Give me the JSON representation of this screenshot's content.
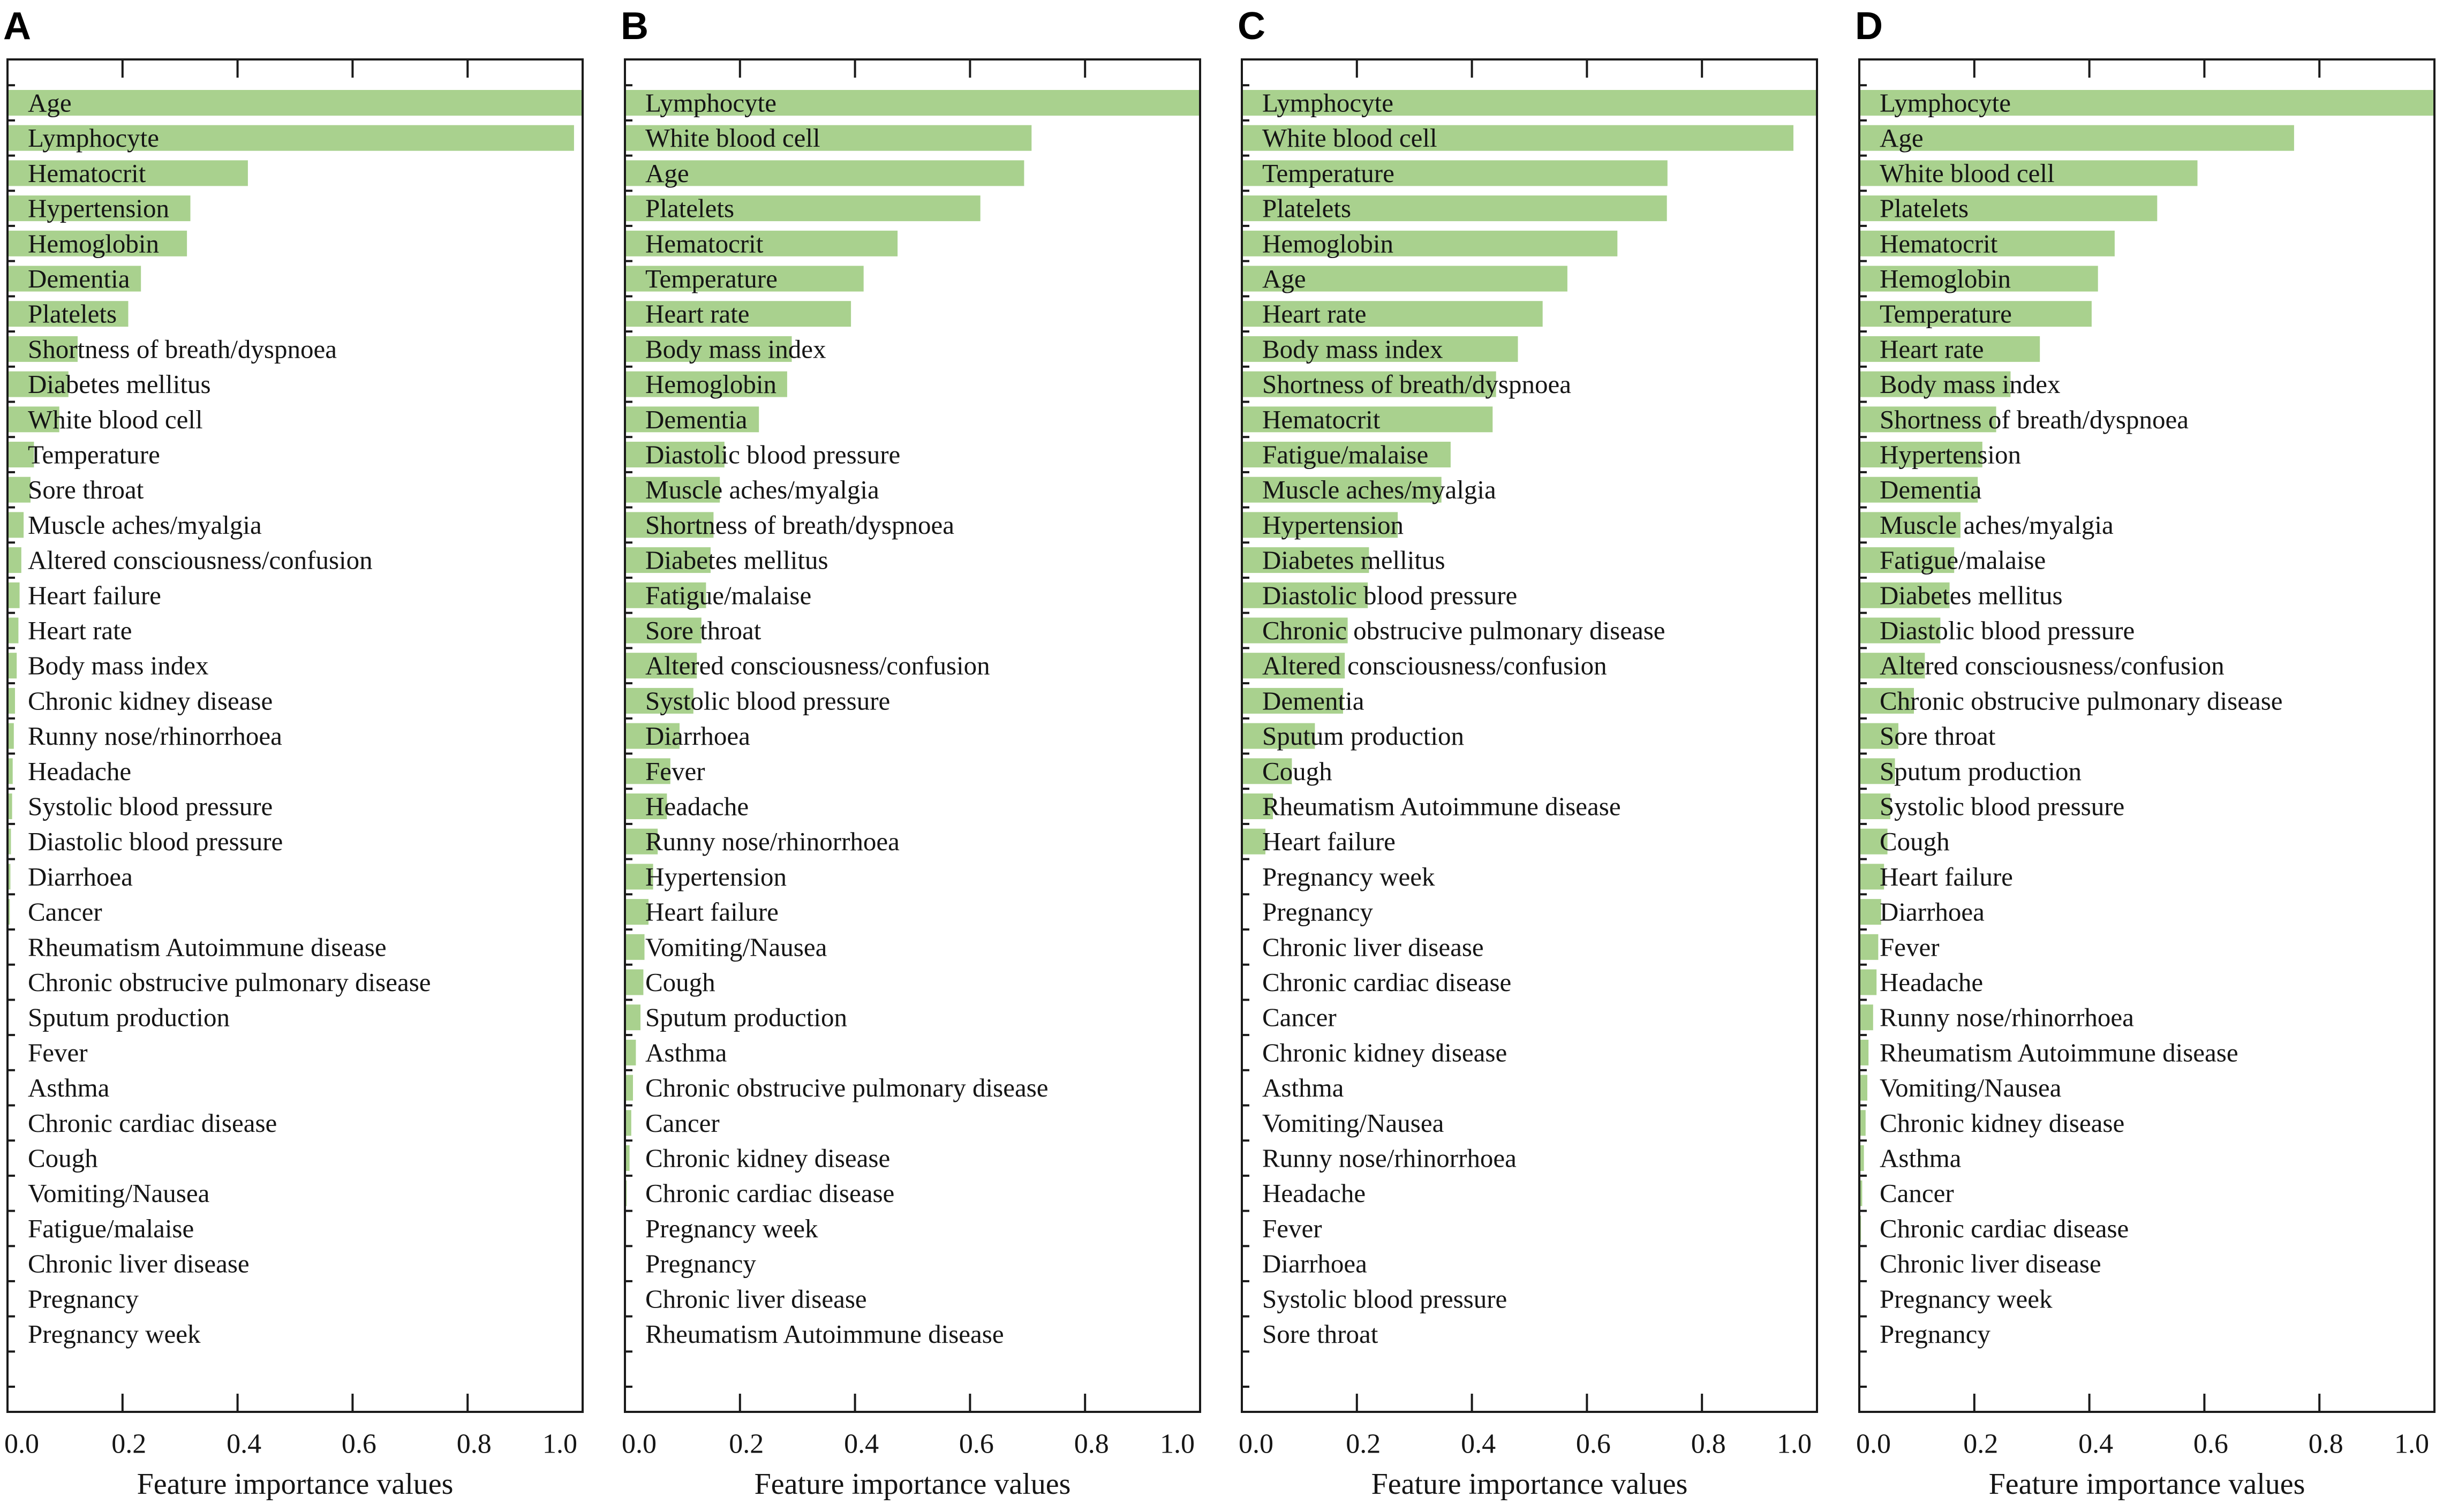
{
  "chart_data": [
    {
      "panel": "A",
      "type": "bar",
      "bar_color": "#a9d18e",
      "xlabel": "Feature importance values",
      "xlim": [
        0,
        1.0
      ],
      "xticks": [
        "0.0",
        "0.2",
        "0.4",
        "0.6",
        "0.8",
        "1.0"
      ],
      "categories": [
        "Age",
        "Lymphocyte",
        "Hematocrit",
        "Hypertension",
        "Hemoglobin",
        "Dementia",
        "Platelets",
        "Shortness of breath/dyspnoea",
        "Diabetes mellitus",
        "White blood cell",
        "Temperature",
        "Sore throat",
        "Muscle aches/myalgia",
        "Altered consciousness/confusion",
        "Heart failure",
        "Heart rate",
        "Body mass index",
        "Chronic kidney disease",
        "Runny nose/rhinorrhoea",
        "Headache",
        "Systolic blood pressure",
        "Diastolic blood pressure",
        "Diarrhoea",
        "Cancer",
        "Rheumatism Autoimmune disease",
        "Chronic obstrucive pulmonary disease",
        "Sputum production",
        "Fever",
        "Asthma",
        "Chronic cardiac disease",
        "Cough",
        "Vomiting/Nausea",
        "Fatigue/malaise",
        "Chronic liver disease",
        "Pregnancy",
        "Pregnancy week"
      ],
      "values": [
        1.0,
        0.985,
        0.418,
        0.318,
        0.312,
        0.232,
        0.21,
        0.122,
        0.106,
        0.09,
        0.046,
        0.04,
        0.028,
        0.024,
        0.021,
        0.019,
        0.016,
        0.013,
        0.011,
        0.009,
        0.008,
        0.006,
        0.005,
        0.004,
        0.002,
        0.001,
        0.001,
        0,
        0,
        0,
        0,
        0,
        0,
        0,
        0,
        0
      ]
    },
    {
      "panel": "B",
      "type": "bar",
      "bar_color": "#a9d18e",
      "xlabel": "Feature importance values",
      "xlim": [
        0,
        1.0
      ],
      "xticks": [
        "0.0",
        "0.2",
        "0.4",
        "0.6",
        "0.8",
        "1.0"
      ],
      "categories": [
        "Lymphocyte",
        "White blood cell",
        "Age",
        "Platelets",
        "Hematocrit",
        "Temperature",
        "Heart rate",
        "Body mass index",
        "Hemoglobin",
        "Dementia",
        "Diastolic blood pressure",
        "Muscle aches/myalgia",
        "Shortness of breath/dyspnoea",
        "Diabetes mellitus",
        "Fatigue/malaise",
        "Sore throat",
        "Altered consciousness/confusion",
        "Systolic blood pressure",
        "Diarrhoea",
        "Fever",
        "Headache",
        "Runny nose/rhinorrhoea",
        "Hypertension",
        "Heart failure",
        "Vomiting/Nausea",
        "Cough",
        "Sputum production",
        "Asthma",
        "Chronic obstrucive pulmonary disease",
        "Cancer",
        "Chronic kidney disease",
        "Chronic cardiac disease",
        "Pregnancy week",
        "Pregnancy",
        "Chronic liver disease",
        "Rheumatism Autoimmune disease"
      ],
      "values": [
        1.0,
        0.707,
        0.694,
        0.618,
        0.474,
        0.415,
        0.393,
        0.29,
        0.282,
        0.233,
        0.173,
        0.165,
        0.154,
        0.149,
        0.141,
        0.133,
        0.125,
        0.119,
        0.095,
        0.079,
        0.073,
        0.057,
        0.049,
        0.041,
        0.034,
        0.032,
        0.027,
        0.019,
        0.014,
        0.011,
        0.008,
        0.003,
        0.002,
        0.001,
        0,
        0
      ]
    },
    {
      "panel": "C",
      "type": "bar",
      "bar_color": "#a9d18e",
      "xlabel": "Feature importance values",
      "xlim": [
        0,
        1.0
      ],
      "xticks": [
        "0.0",
        "0.2",
        "0.4",
        "0.6",
        "0.8",
        "1.0"
      ],
      "categories": [
        "Lymphocyte",
        "White blood cell",
        "Temperature",
        "Platelets",
        "Hemoglobin",
        "Age",
        "Heart rate",
        "Body mass index",
        "Shortness of breath/dyspnoea",
        "Hematocrit",
        "Fatigue/malaise",
        "Muscle aches/myalgia",
        "Hypertension",
        "Diabetes mellitus",
        "Diastolic blood pressure",
        "Chronic obstrucive pulmonary disease",
        "Altered consciousness/confusion",
        "Dementia",
        "Sputum production",
        "Cough",
        "Rheumatism Autoimmune disease",
        "Heart failure",
        "Pregnancy week",
        "Pregnancy",
        "Chronic liver disease",
        "Chronic cardiac disease",
        "Cancer",
        "Chronic kidney disease",
        "Asthma",
        "Vomiting/Nausea",
        "Runny nose/rhinorrhoea",
        "Headache",
        "Fever",
        "Diarrhoea",
        "Systolic blood pressure",
        "Sore throat"
      ],
      "values": [
        1.0,
        0.959,
        0.74,
        0.739,
        0.653,
        0.566,
        0.523,
        0.48,
        0.442,
        0.436,
        0.363,
        0.347,
        0.271,
        0.221,
        0.219,
        0.184,
        0.179,
        0.176,
        0.127,
        0.087,
        0.054,
        0.041,
        0,
        0,
        0,
        0,
        0,
        0,
        0,
        0,
        0,
        0,
        0,
        0,
        0,
        0
      ]
    },
    {
      "panel": "D",
      "type": "bar",
      "bar_color": "#a9d18e",
      "xlabel": "Feature importance values",
      "xlim": [
        0,
        1.0
      ],
      "xticks": [
        "0.0",
        "0.2",
        "0.4",
        "0.6",
        "0.8",
        "1.0"
      ],
      "categories": [
        "Lymphocyte",
        "Age",
        "White blood cell",
        "Platelets",
        "Hematocrit",
        "Hemoglobin",
        "Temperature",
        "Heart rate",
        "Body mass index",
        "Shortness of breath/dyspnoea",
        "Hypertension",
        "Dementia",
        "Muscle aches/myalgia",
        "Fatigue/malaise",
        "Diabetes mellitus",
        "Diastolic blood pressure",
        "Altered consciousness/confusion",
        "Chronic obstrucive pulmonary disease",
        "Sore throat",
        "Sputum production",
        "Systolic blood pressure",
        "Cough",
        "Heart failure",
        "Diarrhoea",
        "Fever",
        "Headache",
        "Runny nose/rhinorrhoea",
        "Rheumatism Autoimmune disease",
        "Vomiting/Nausea",
        "Chronic kidney disease",
        "Asthma",
        "Cancer",
        "Chronic cardiac disease",
        "Chronic liver disease",
        "Pregnancy week",
        "Pregnancy"
      ],
      "values": [
        1.0,
        0.756,
        0.588,
        0.518,
        0.444,
        0.415,
        0.404,
        0.314,
        0.263,
        0.238,
        0.214,
        0.206,
        0.176,
        0.165,
        0.157,
        0.141,
        0.114,
        0.095,
        0.068,
        0.062,
        0.054,
        0.049,
        0.043,
        0.038,
        0.033,
        0.03,
        0.024,
        0.016,
        0.014,
        0.011,
        0.008,
        0.005,
        0.003,
        0.002,
        0.001,
        0
      ]
    }
  ]
}
